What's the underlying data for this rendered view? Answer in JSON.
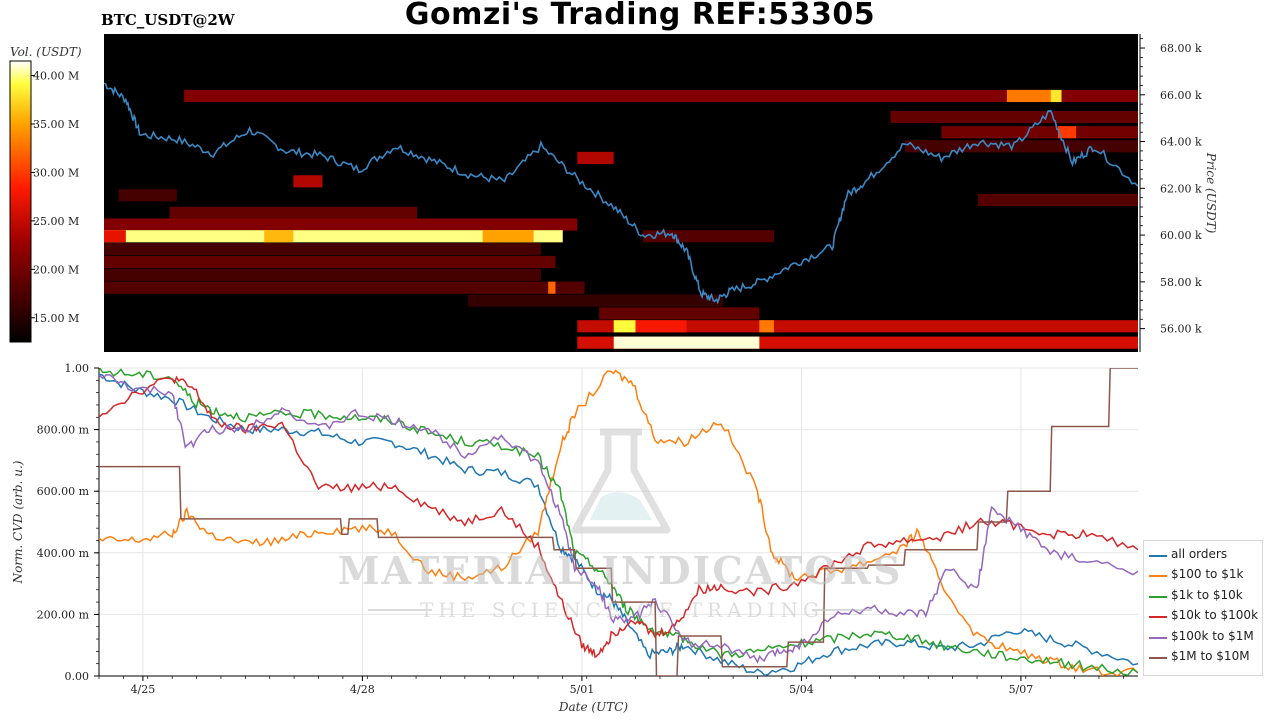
{
  "header": {
    "title": "Gomzi's Trading REF:53305",
    "ticker": "BTC_USDT@2W"
  },
  "watermark": {
    "brand": "MATERIAL INDICATORS",
    "tagline": "THE SCIENCE OF TRADING",
    "icon": "flask-icon"
  },
  "chart_data": [
    {
      "type": "heatmap",
      "title": "",
      "ylabel": "Price (USDT)",
      "colorbar_label": "Vol. (USDT)",
      "colorbar_ticks": [
        "15.00 M",
        "20.00 M",
        "25.00 M",
        "30.00 M",
        "35.00 M",
        "40.00 M"
      ],
      "colorbar_range": [
        12.5,
        41.5
      ],
      "y_ticks": [
        "56.00 k",
        "58.00 k",
        "60.00 k",
        "62.00 k",
        "64.00 k",
        "66.00 k",
        "68.00 k"
      ],
      "ylim": [
        55,
        68.6
      ],
      "xlim": [
        0,
        14.2
      ],
      "colors": {
        "background": "#000000",
        "price_line": "#3b88c4"
      },
      "price_series": {
        "name": "BTC price",
        "x": [
          0,
          0.3,
          0.5,
          1.0,
          1.5,
          2.0,
          2.5,
          3.0,
          3.5,
          4.0,
          4.5,
          5.0,
          5.5,
          6.0,
          6.5,
          7.0,
          7.4,
          7.8,
          8.0,
          8.2,
          8.4,
          8.6,
          9.0,
          9.5,
          10.0,
          10.2,
          10.5,
          11.0,
          11.5,
          12.0,
          12.5,
          13.0,
          13.3,
          13.6,
          14.2
        ],
        "y": [
          66.5,
          65.8,
          64.3,
          64.1,
          63.5,
          64.5,
          63.6,
          63.4,
          62.8,
          63.8,
          63.2,
          62.6,
          62.3,
          63.8,
          62.4,
          61.2,
          60.0,
          60.1,
          59.3,
          57.5,
          57.2,
          57.6,
          58.0,
          58.8,
          59.5,
          61.7,
          62.4,
          63.9,
          63.3,
          64.0,
          63.8,
          65.3,
          63.1,
          63.8,
          62.1
        ]
      },
      "bands": [
        {
          "y": 65.95,
          "x0": 1.1,
          "x1": 14.2,
          "vol": 21,
          "peaks": [
            {
              "x0": 12.4,
              "x1": 13.0,
              "vol": 33
            },
            {
              "x0": 13.0,
              "x1": 13.15,
              "vol": 38
            }
          ]
        },
        {
          "y": 65.05,
          "x0": 10.8,
          "x1": 14.2,
          "vol": 19
        },
        {
          "y": 64.4,
          "x0": 11.5,
          "x1": 14.2,
          "vol": 20,
          "peaks": [
            {
              "x0": 13.1,
              "x1": 13.35,
              "vol": 30
            }
          ]
        },
        {
          "y": 63.8,
          "x0": 11.0,
          "x1": 14.2,
          "vol": 17
        },
        {
          "y": 63.3,
          "x0": 6.5,
          "x1": 7.0,
          "vol": 24
        },
        {
          "y": 62.3,
          "x0": 2.6,
          "x1": 3.0,
          "vol": 24
        },
        {
          "y": 61.7,
          "x0": 0.2,
          "x1": 1.0,
          "vol": 17
        },
        {
          "y": 61.5,
          "x0": 12.0,
          "x1": 14.2,
          "vol": 18
        },
        {
          "y": 60.95,
          "x0": 0.9,
          "x1": 4.3,
          "vol": 19
        },
        {
          "y": 60.45,
          "x0": 0,
          "x1": 6.5,
          "vol": 21
        },
        {
          "y": 59.95,
          "x0": 0,
          "x1": 6.3,
          "vol": 40,
          "peaks": [
            {
              "x0": 0,
              "x1": 0.3,
              "vol": 27
            },
            {
              "x0": 2.2,
              "x1": 2.6,
              "vol": 36
            },
            {
              "x0": 5.2,
              "x1": 5.9,
              "vol": 35
            }
          ]
        },
        {
          "y": 59.95,
          "x0": 7.4,
          "x1": 9.2,
          "vol": 18
        },
        {
          "y": 59.4,
          "x0": 0,
          "x1": 6.0,
          "vol": 17
        },
        {
          "y": 58.85,
          "x0": 0,
          "x1": 6.2,
          "vol": 19
        },
        {
          "y": 58.3,
          "x0": 0,
          "x1": 6.0,
          "vol": 17
        },
        {
          "y": 57.75,
          "x0": 0,
          "x1": 6.6,
          "vol": 18,
          "peaks": [
            {
              "x0": 6.1,
              "x1": 6.2,
              "vol": 32
            }
          ]
        },
        {
          "y": 57.2,
          "x0": 5.0,
          "x1": 8.5,
          "vol": 16
        },
        {
          "y": 56.65,
          "x0": 6.8,
          "x1": 9.0,
          "vol": 19
        },
        {
          "y": 56.1,
          "x0": 6.5,
          "x1": 14.2,
          "vol": 25,
          "peaks": [
            {
              "x0": 7.0,
              "x1": 7.3,
              "vol": 39
            },
            {
              "x0": 7.3,
              "x1": 8.0,
              "vol": 28
            },
            {
              "x0": 9.0,
              "x1": 9.2,
              "vol": 33
            }
          ]
        },
        {
          "y": 55.4,
          "x0": 6.5,
          "x1": 14.2,
          "vol": 26,
          "peaks": [
            {
              "x0": 7.0,
              "x1": 9.0,
              "vol": 41
            }
          ]
        }
      ]
    },
    {
      "type": "line",
      "title": "",
      "xlabel": "Date (UTC)",
      "ylabel": "Norm. CVD (arb. u.)",
      "ylim": [
        0,
        1
      ],
      "xlim": [
        0,
        14.2
      ],
      "y_ticks": [
        "0.00",
        "200.00 m",
        "400.00 m",
        "600.00 m",
        "800.00 m",
        "1.00"
      ],
      "x_ticks": [
        {
          "x": 0.6,
          "label": "4/25"
        },
        {
          "x": 3.6,
          "label": "4/28"
        },
        {
          "x": 6.6,
          "label": "5/01"
        },
        {
          "x": 9.6,
          "label": "5/04"
        },
        {
          "x": 12.6,
          "label": "5/07"
        }
      ],
      "grid": true,
      "legend": "right",
      "series": [
        {
          "name": "all orders",
          "color": "#1f77b4",
          "x": [
            0,
            0.5,
            1.0,
            1.5,
            2.0,
            2.5,
            3.0,
            3.5,
            4.0,
            4.5,
            5.0,
            5.5,
            6.0,
            6.3,
            6.5,
            6.8,
            7.0,
            7.2,
            7.5,
            7.8,
            8.0,
            8.5,
            9.0,
            9.5,
            10.0,
            10.5,
            11.0,
            11.5,
            12.0,
            12.5,
            13.0,
            13.5,
            14.2
          ],
          "y": [
            0.98,
            0.93,
            0.9,
            0.84,
            0.8,
            0.8,
            0.79,
            0.76,
            0.76,
            0.72,
            0.67,
            0.66,
            0.62,
            0.42,
            0.38,
            0.28,
            0.25,
            0.18,
            0.07,
            0.08,
            0.1,
            0.05,
            0.01,
            0.03,
            0.08,
            0.1,
            0.11,
            0.09,
            0.1,
            0.15,
            0.12,
            0.09,
            0.04
          ]
        },
        {
          "name": "$100 to $1k",
          "color": "#ff7f0e",
          "x": [
            0,
            0.5,
            1.0,
            1.2,
            1.5,
            2.0,
            2.5,
            3.0,
            3.5,
            4.0,
            4.5,
            5.0,
            5.5,
            6.0,
            6.3,
            6.5,
            7.0,
            7.3,
            7.6,
            8.0,
            8.5,
            9.0,
            9.2,
            9.5,
            10.0,
            10.5,
            11.0,
            11.2,
            11.5,
            12.0,
            12.5,
            13.0,
            13.5,
            14.2
          ],
          "y": [
            0.44,
            0.44,
            0.46,
            0.53,
            0.46,
            0.43,
            0.44,
            0.47,
            0.48,
            0.47,
            0.34,
            0.32,
            0.35,
            0.47,
            0.74,
            0.85,
            0.99,
            0.95,
            0.77,
            0.76,
            0.83,
            0.6,
            0.4,
            0.32,
            0.34,
            0.37,
            0.42,
            0.47,
            0.3,
            0.13,
            0.08,
            0.05,
            0.02,
            0.01
          ]
        },
        {
          "name": "$1k to $10k",
          "color": "#2ca02c",
          "x": [
            0,
            0.5,
            1.0,
            1.3,
            1.6,
            2.0,
            2.5,
            3.0,
            3.5,
            4.0,
            4.5,
            5.0,
            5.5,
            6.0,
            6.3,
            6.5,
            6.8,
            7.0,
            7.2,
            7.5,
            7.8,
            8.0,
            8.5,
            9.0,
            9.5,
            10.0,
            10.5,
            11.0,
            11.5,
            12.0,
            12.5,
            13.0,
            13.5,
            14.2
          ],
          "y": [
            0.99,
            0.98,
            0.97,
            0.89,
            0.86,
            0.84,
            0.85,
            0.85,
            0.84,
            0.83,
            0.79,
            0.76,
            0.75,
            0.71,
            0.6,
            0.4,
            0.35,
            0.3,
            0.22,
            0.16,
            0.13,
            0.12,
            0.07,
            0.08,
            0.1,
            0.12,
            0.14,
            0.13,
            0.1,
            0.08,
            0.06,
            0.05,
            0.03,
            0.01
          ]
        },
        {
          "name": "$10k to $100k",
          "color": "#d62728",
          "x": [
            0,
            0.5,
            1.0,
            1.3,
            1.6,
            2.0,
            2.5,
            3.0,
            3.5,
            4.0,
            4.5,
            5.0,
            5.5,
            6.0,
            6.3,
            6.6,
            6.8,
            7.0,
            7.3,
            7.6,
            7.9,
            8.2,
            8.5,
            9.0,
            9.5,
            10.0,
            10.5,
            11.0,
            11.5,
            12.0,
            12.5,
            13.0,
            13.5,
            14.2
          ],
          "y": [
            0.85,
            0.92,
            0.97,
            0.93,
            0.82,
            0.8,
            0.82,
            0.61,
            0.61,
            0.62,
            0.55,
            0.5,
            0.54,
            0.42,
            0.25,
            0.1,
            0.07,
            0.13,
            0.19,
            0.13,
            0.17,
            0.28,
            0.29,
            0.27,
            0.3,
            0.36,
            0.42,
            0.44,
            0.45,
            0.5,
            0.49,
            0.46,
            0.46,
            0.41
          ]
        },
        {
          "name": "$100k to $1M",
          "color": "#9467bd",
          "x": [
            0,
            0.5,
            1.0,
            1.2,
            1.5,
            2.0,
            2.5,
            3.0,
            3.5,
            4.0,
            4.5,
            5.0,
            5.5,
            6.0,
            6.3,
            6.5,
            6.8,
            7.0,
            7.3,
            7.6,
            8.0,
            8.5,
            9.0,
            9.3,
            9.6,
            10.0,
            10.5,
            11.0,
            11.3,
            11.6,
            12.0,
            12.2,
            12.6,
            13.0,
            13.5,
            14.2
          ],
          "y": [
            0.98,
            0.93,
            0.92,
            0.74,
            0.8,
            0.8,
            0.87,
            0.8,
            0.85,
            0.83,
            0.8,
            0.72,
            0.78,
            0.69,
            0.53,
            0.35,
            0.3,
            0.19,
            0.18,
            0.25,
            0.11,
            0.1,
            0.05,
            0.08,
            0.1,
            0.19,
            0.22,
            0.2,
            0.2,
            0.35,
            0.28,
            0.54,
            0.48,
            0.4,
            0.37,
            0.34
          ]
        },
        {
          "name": "$1M to $10M",
          "color": "#8c564b",
          "x": [
            0,
            1.1,
            1.12,
            3.3,
            3.32,
            3.4,
            3.42,
            3.8,
            3.82,
            6.2,
            6.22,
            6.5,
            6.52,
            7.0,
            7.02,
            7.6,
            7.62,
            7.9,
            7.92,
            8.5,
            8.52,
            9.4,
            9.42,
            9.9,
            9.92,
            10.5,
            10.52,
            11.0,
            11.02,
            12.0,
            12.02,
            12.4,
            12.42,
            13.0,
            13.02,
            13.8,
            13.82,
            14.2
          ],
          "y": [
            0.68,
            0.68,
            0.51,
            0.51,
            0.46,
            0.46,
            0.51,
            0.51,
            0.45,
            0.45,
            0.41,
            0.41,
            0.35,
            0.35,
            0.24,
            0.24,
            0.0,
            0.0,
            0.13,
            0.13,
            0.03,
            0.03,
            0.11,
            0.11,
            0.35,
            0.35,
            0.36,
            0.36,
            0.41,
            0.41,
            0.5,
            0.5,
            0.6,
            0.6,
            0.81,
            0.81,
            1.0,
            1.0
          ]
        }
      ]
    }
  ]
}
